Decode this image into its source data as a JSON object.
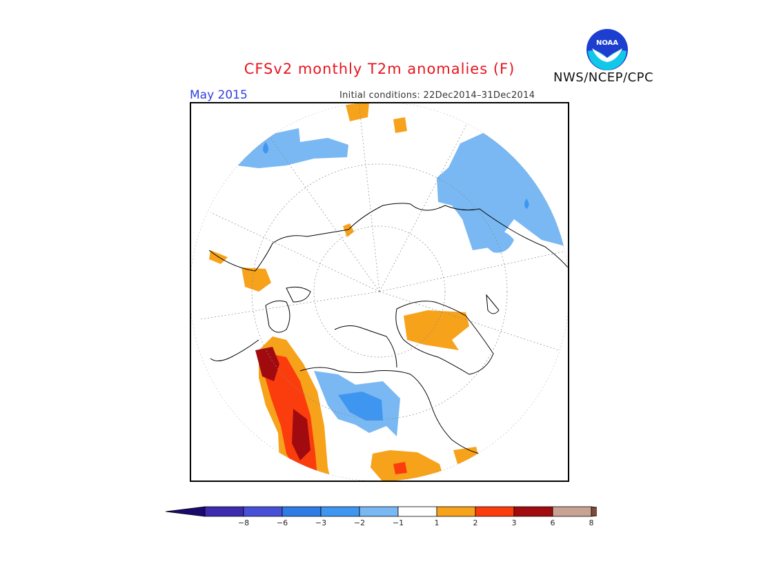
{
  "header": {
    "title": "CFSv2 monthly T2m anomalies (F)",
    "month": "May 2015",
    "initial_conditions": "Initial conditions: 22Dec2014–31Dec2014",
    "agency": "NWS/NCEP/CPC",
    "logo_text": "NOAA"
  },
  "colors": {
    "title": "#e8141e",
    "month": "#2f3fe0",
    "neg8": "#3c2baf",
    "neg6": "#4750d6",
    "neg3": "#2e7be6",
    "neg2": "#3f96f0",
    "neg1": "#79b8f3",
    "zero": "#ffffff",
    "pos1": "#f7a21b",
    "pos2": "#fb3d0d",
    "pos3": "#a10b0f",
    "pos6": "#c8a393",
    "pos8": "#7b4c3c",
    "below_min": "#1b0a6e"
  },
  "legend": {
    "ticks": [
      "−8",
      "−6",
      "−3",
      "−2",
      "−1",
      "1",
      "2",
      "3",
      "6",
      "8"
    ]
  },
  "map": {
    "projection": "north polar stereographic",
    "anomaly_regions": [
      {
        "area": "Siberia / Kara Sea",
        "sign": "negative",
        "class": "-1 to -2"
      },
      {
        "area": "Scandinavia / Norwegian Sea",
        "sign": "negative",
        "class": "-1 to -2"
      },
      {
        "area": "Greenland",
        "sign": "positive",
        "class": "1 to 2"
      },
      {
        "area": "Alaska / Western Canada",
        "sign": "positive",
        "class": "3 to 6"
      },
      {
        "area": "Hudson Bay / Central Canada",
        "sign": "negative",
        "class": "-2 to -3"
      },
      {
        "area": "Eastern Canada / New England",
        "sign": "positive",
        "class": "1 to 3"
      }
    ]
  }
}
